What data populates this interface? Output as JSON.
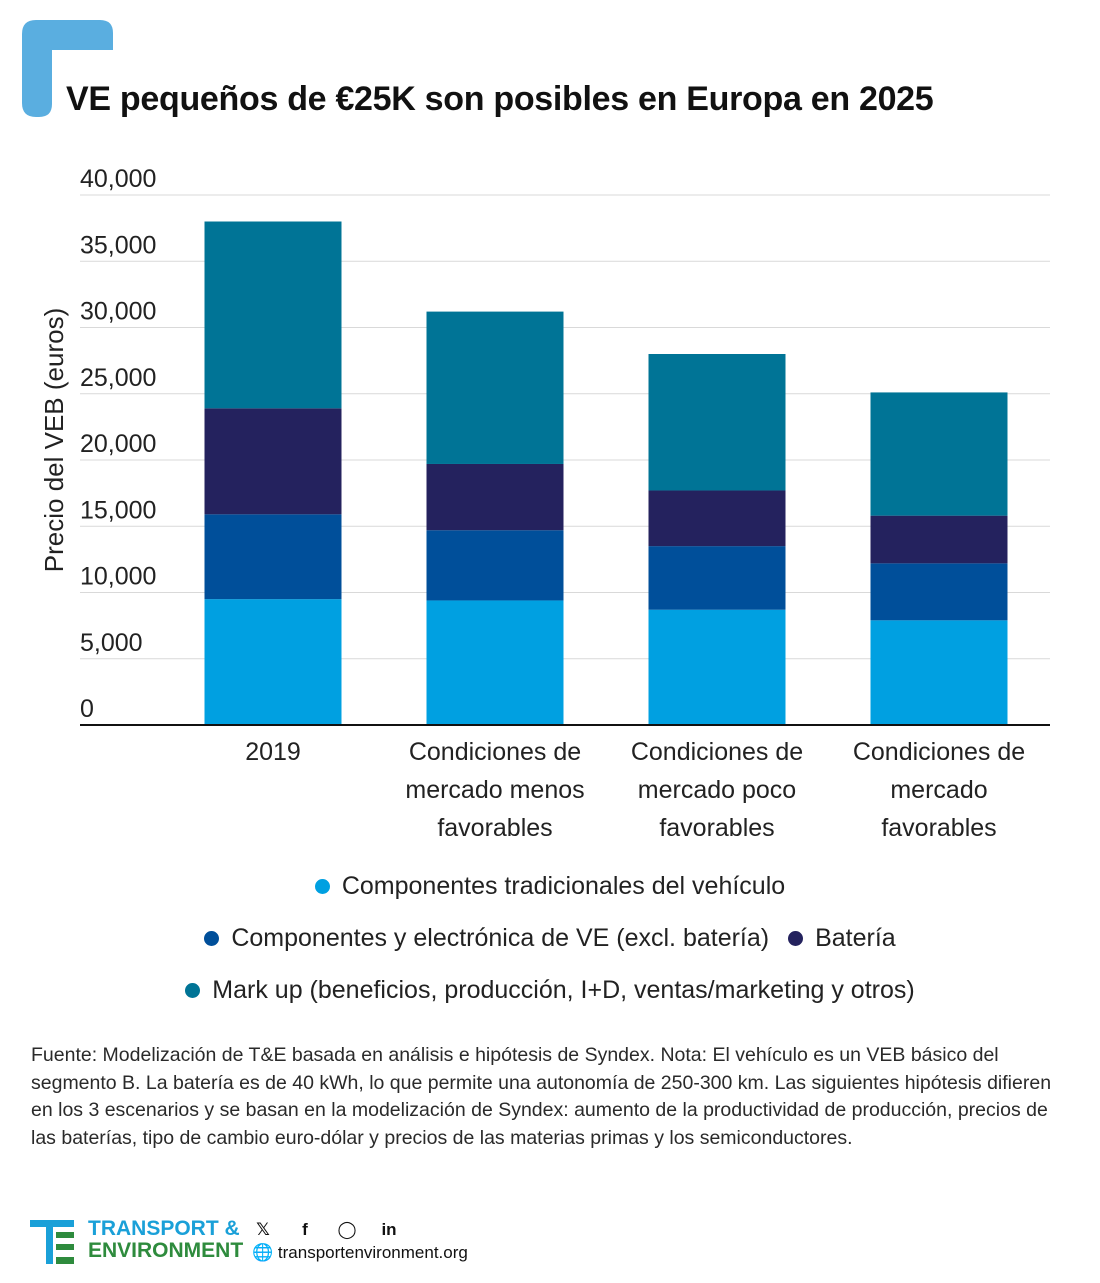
{
  "title": "VE pequeños de €25K son posibles en Europa en 2025",
  "chart_data": {
    "type": "bar",
    "stacked": true,
    "title": "VE pequeños de €25K son posibles en Europa en 2025",
    "xlabel": "",
    "ylabel": "Precio del VEB (euros)",
    "ylim": [
      0,
      40000
    ],
    "yticks": [
      "0",
      "5,000",
      "10,000",
      "15,000",
      "20,000",
      "25,000",
      "30,000",
      "35,000",
      "40,000"
    ],
    "ytick_values": [
      0,
      5000,
      10000,
      15000,
      20000,
      25000,
      30000,
      35000,
      40000
    ],
    "grid": true,
    "categories": [
      [
        "2019"
      ],
      [
        "Condiciones de",
        "mercado menos",
        "favorables"
      ],
      [
        "Condiciones de",
        "mercado poco",
        "favorables"
      ],
      [
        "Condiciones de",
        "mercado",
        "favorables"
      ]
    ],
    "series": [
      {
        "name": "Componentes tradicionales del vehículo",
        "color": "#00a0e1",
        "values": [
          9500,
          9400,
          8700,
          7900
        ]
      },
      {
        "name": "Componentes y electrónica de VE (excl. batería)",
        "color": "#004f9a",
        "values": [
          6400,
          5300,
          4800,
          4300
        ]
      },
      {
        "name": "Batería",
        "color": "#24225e",
        "values": [
          8000,
          5000,
          4200,
          3600
        ]
      },
      {
        "name": "Mark up (beneficios, producción, I+D, ventas/marketing y otros)",
        "color": "#007496",
        "values": [
          14100,
          11500,
          10300,
          9300
        ]
      }
    ]
  },
  "legend": {
    "row1": [
      "Componentes tradicionales del vehículo"
    ],
    "row2": [
      "Componentes y electrónica de VE (excl. batería)",
      "Batería"
    ],
    "row3": [
      "Mark up (beneficios, producción, I+D, ventas/marketing y otros)"
    ]
  },
  "colors": {
    "traditional": "#00a0e1",
    "ev_components": "#004f9a",
    "battery": "#24225e",
    "markup": "#007496",
    "corner": "#5aaee0"
  },
  "footnote": "Fuente: Modelización de T&E basada en análisis e hipótesis de Syndex. Nota: El vehículo es un VEB básico del segmento B. La batería es de 40 kWh, lo que permite una autonomía de 250-300 km. Las siguientes hipótesis difieren en los 3 escenarios y se basan en la modelización de Syndex: aumento de la productividad de producción, precios de las baterías, tipo de cambio euro-dólar y precios de las materias primas y los semiconductores.",
  "footer": {
    "brand_line1": "TRANSPORT &",
    "brand_line2": "ENVIRONMENT",
    "website": "transportenvironment.org",
    "social_icons": [
      "twitter-icon",
      "facebook-icon",
      "instagram-icon",
      "linkedin-icon"
    ]
  }
}
